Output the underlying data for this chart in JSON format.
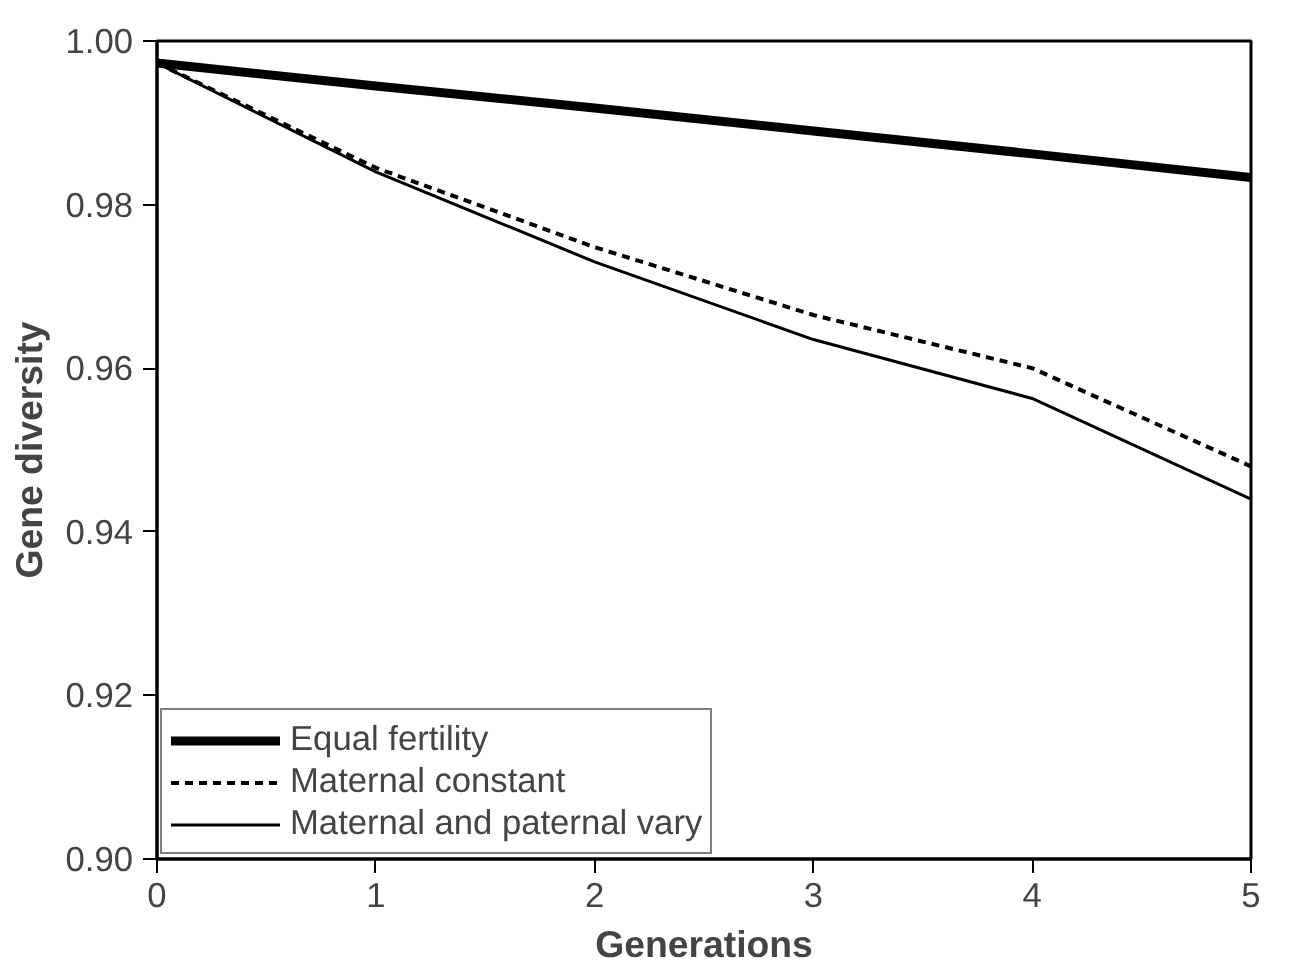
{
  "chart_data": {
    "type": "line",
    "xlabel": "Generations",
    "ylabel": "Gene diversity",
    "x": [
      0,
      1,
      2,
      3,
      4,
      5
    ],
    "series": [
      {
        "name": "Equal fertility",
        "color": "#000000",
        "line_style": "solid",
        "values": [
          0.9973,
          0.9945,
          0.9918,
          0.989,
          0.9862,
          0.9833
        ]
      },
      {
        "name": "Maternal constant",
        "color": "#000000",
        "line_style": "dashed",
        "values": [
          0.9973,
          0.9845,
          0.9748,
          0.9665,
          0.96,
          0.948
        ]
      },
      {
        "name": "Maternal and paternal vary",
        "color": "#000000",
        "line_style": "solid",
        "values": [
          0.9973,
          0.984,
          0.973,
          0.9635,
          0.9563,
          0.944
        ]
      }
    ],
    "xlim": [
      0,
      5
    ],
    "xticks": [
      0,
      1,
      2,
      3,
      4,
      5
    ],
    "ylim": [
      0.9,
      1.0
    ],
    "yticks": [
      {
        "value": 0.9,
        "label": "0.90"
      },
      {
        "value": 0.92,
        "label": "0.92"
      },
      {
        "value": 0.94,
        "label": "0.94"
      },
      {
        "value": 0.96,
        "label": "0.96"
      },
      {
        "value": 0.98,
        "label": "0.98"
      },
      {
        "value": 1.0,
        "label": "1.00"
      }
    ],
    "grid": false,
    "legend": "bottom left",
    "marker": "none"
  }
}
